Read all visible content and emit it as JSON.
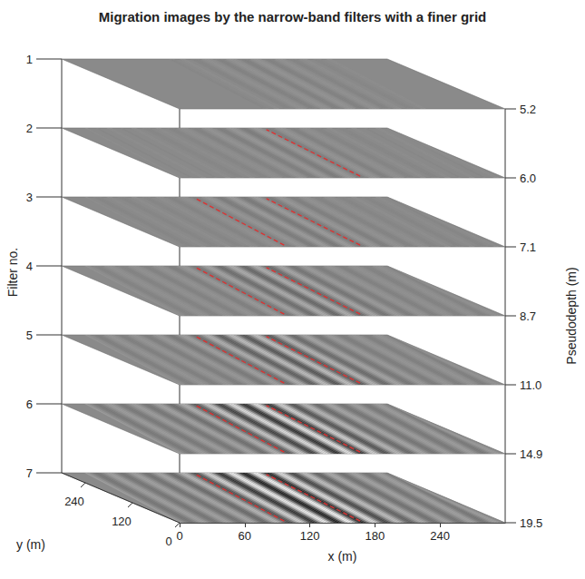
{
  "chart_data": {
    "type": "slices3d",
    "title": "Migration images by the narrow-band filters with a finer grid",
    "x_label": "x (m)",
    "y_label": "y (m)",
    "z_label": "Filter no.",
    "z2_label": "Pseudodepth (m)",
    "xlim": [
      0,
      300
    ],
    "xticks": [
      0,
      60,
      120,
      180,
      240
    ],
    "ylim": [
      0,
      300
    ],
    "yticks": [
      0,
      120,
      240
    ],
    "color": "#e03030",
    "line_style": "dashed",
    "slices": [
      {
        "filter": 1,
        "pseudodepth": 5.2,
        "contrast": 0.08,
        "dashed_lines": []
      },
      {
        "filter": 2,
        "pseudodepth": {
          "value": 6,
          "label": "6.0"
        },
        "contrast": 0.12,
        "dashed_lines": [
          [
            [
              170,
              10
            ],
            [
              185,
              290
            ]
          ]
        ]
      },
      {
        "filter": 3,
        "pseudodepth": 7.1,
        "contrast": 0.15,
        "dashed_lines": [
          [
            [
              100,
              10
            ],
            [
              120,
              290
            ]
          ],
          [
            [
              170,
              10
            ],
            [
              185,
              290
            ]
          ]
        ]
      },
      {
        "filter": 4,
        "pseudodepth": 8.7,
        "contrast": 0.3,
        "dashed_lines": [
          [
            [
              100,
              10
            ],
            [
              120,
              290
            ]
          ],
          [
            [
              170,
              10
            ],
            [
              185,
              290
            ]
          ]
        ]
      },
      {
        "filter": 5,
        "pseudodepth": {
          "value": 11,
          "label": "11.0"
        },
        "contrast": 0.45,
        "dashed_lines": [
          [
            [
              100,
              10
            ],
            [
              120,
              290
            ]
          ],
          [
            [
              170,
              10
            ],
            [
              185,
              290
            ]
          ]
        ]
      },
      {
        "filter": 6,
        "pseudodepth": 14.9,
        "contrast": 0.75,
        "dashed_lines": [
          [
            [
              100,
              10
            ],
            [
              120,
              290
            ]
          ],
          [
            [
              170,
              10
            ],
            [
              185,
              290
            ]
          ]
        ]
      },
      {
        "filter": 7,
        "pseudodepth": 19.5,
        "contrast": 0.9,
        "dashed_lines": [
          [
            [
              100,
              10
            ],
            [
              120,
              290
            ]
          ],
          [
            [
              170,
              10
            ],
            [
              185,
              290
            ]
          ]
        ]
      }
    ]
  }
}
